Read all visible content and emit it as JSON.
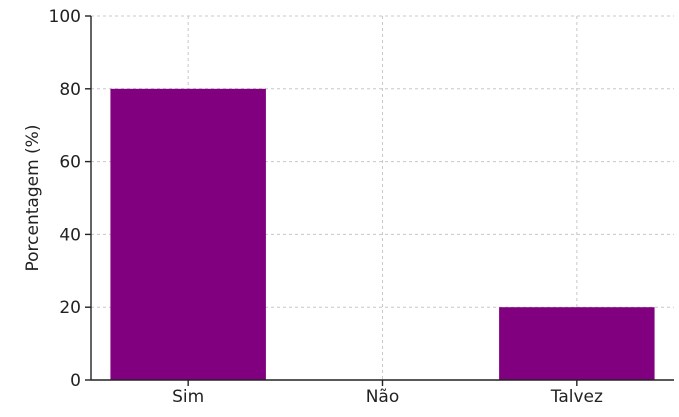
{
  "chart_data": {
    "type": "bar",
    "categories": [
      "Sim",
      "Não",
      "Talvez"
    ],
    "values": [
      80,
      0,
      20
    ],
    "ylabel": "Porcentagem (%)",
    "ylim": [
      0,
      100
    ],
    "yticks": [
      0,
      20,
      40,
      60,
      80,
      100
    ],
    "grid": true,
    "bar_color": "#800080"
  }
}
